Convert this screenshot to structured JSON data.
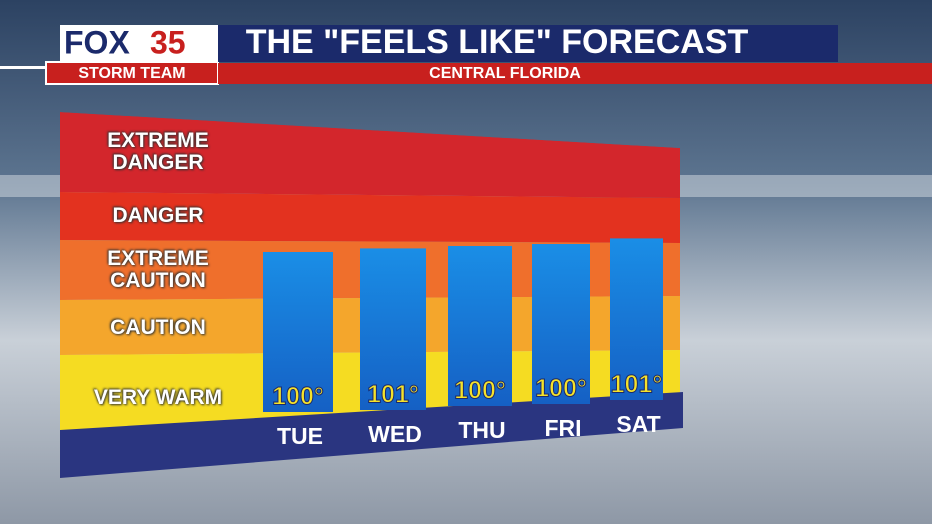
{
  "chart_data": {
    "type": "bar",
    "logo": {
      "brand": "FOX",
      "channel": "35",
      "team": "STORM TEAM"
    },
    "title": "THE \"FEELS LIKE\" FORECAST",
    "subtitle": "CENTRAL FLORIDA",
    "zones": [
      "EXTREME DANGER",
      "DANGER",
      "EXTREME CAUTION",
      "CAUTION",
      "VERY WARM"
    ],
    "zone_colors": [
      "#d3262c",
      "#e3321f",
      "#ef6f2c",
      "#f4a62c",
      "#f5dc22"
    ],
    "categories": [
      "TUE",
      "WED",
      "THU",
      "FRI",
      "SAT"
    ],
    "values": [
      100,
      101,
      100,
      100,
      101
    ],
    "value_labels": [
      "100°",
      "101°",
      "100°",
      "100°",
      "101°"
    ],
    "color": "#1d86e0"
  }
}
